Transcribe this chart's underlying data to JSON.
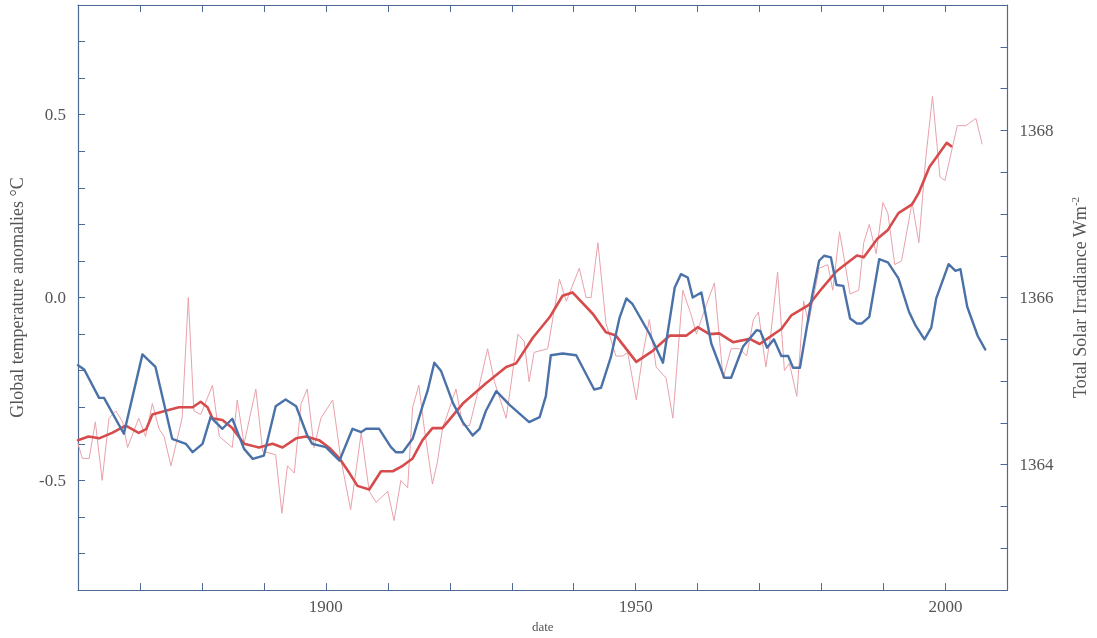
{
  "chart_data": {
    "type": "line",
    "xlabel": "date",
    "ylabel": "Global temperature anomalies °C",
    "y2label": "Total Solar Irradiance Wm$^{-2}$",
    "xlim": [
      1860,
      2010
    ],
    "xticks": [
      {
        "value": 1870,
        "label": null
      },
      {
        "value": 1880,
        "label": null
      },
      {
        "value": 1890,
        "label": null
      },
      1900,
      {
        "value": 1910,
        "label": null
      },
      {
        "value": 1920,
        "label": null
      },
      {
        "value": 1930,
        "label": null
      },
      {
        "value": 1940,
        "label": null
      },
      1950,
      {
        "value": 1960,
        "label": null
      },
      {
        "value": 1970,
        "label": null
      },
      {
        "value": 1980,
        "label": null
      },
      {
        "value": 1990,
        "label": null
      },
      2000
    ],
    "ylim": [
      -0.8,
      0.8
    ],
    "yticks": [
      {
        "value": -0.7,
        "label": null
      },
      {
        "value": -0.6,
        "label": null
      },
      -0.5,
      {
        "value": -0.4,
        "label": null
      },
      {
        "value": -0.3,
        "label": null
      },
      {
        "value": -0.2,
        "label": null
      },
      {
        "value": -0.1,
        "label": null
      },
      {
        "value": 0,
        "label": "0.0"
      },
      {
        "value": 0.1,
        "label": null
      },
      {
        "value": 0.2,
        "label": null
      },
      {
        "value": 0.3,
        "label": null
      },
      {
        "value": 0.4,
        "label": null
      },
      0.5,
      {
        "value": 0.6,
        "label": null
      },
      {
        "value": 0.7,
        "label": null
      }
    ],
    "y2lim": [
      1362.5,
      1369.5
    ],
    "y2ticks": [
      {
        "value": 1363,
        "label": null
      },
      {
        "value": 1363.5,
        "label": null
      },
      1364,
      {
        "value": 1364.5,
        "label": null
      },
      {
        "value": 1365,
        "label": null
      },
      {
        "value": 1365.5,
        "label": null
      },
      1366,
      {
        "value": 1366.5,
        "label": null
      },
      {
        "value": 1367,
        "label": null
      },
      {
        "value": 1367.5,
        "label": null
      },
      1368,
      {
        "value": 1368.5,
        "label": null
      },
      {
        "value": 1369,
        "label": null
      }
    ],
    "marker": "none",
    "line_style": "solid",
    "grid": false,
    "series": [
      {
        "color": "#e9a1ab",
        "x": [
          1860,
          1860.7,
          1861.8,
          1862.8,
          1863.9,
          1865,
          1866.1,
          1867.2,
          1868,
          1869.8,
          1870.9,
          1872,
          1873.1,
          1873.9,
          1875,
          1876.8,
          1877.8,
          1878.7,
          1879.8,
          1881.7,
          1882.8,
          1884.9,
          1885.7,
          1886.8,
          1888.7,
          1889.8,
          1891.9,
          1892.9,
          1893.8,
          1894.9,
          1896,
          1897,
          1898.1,
          1899.2,
          1901.1,
          1902.4,
          1904,
          1905.7,
          1907,
          1908.1,
          1910,
          1911,
          1912.1,
          1913.2,
          1914,
          1915,
          1915.9,
          1917.2,
          1918,
          1918.8,
          1921,
          1922.1,
          1923.2,
          1924.5,
          1926.1,
          1927.2,
          1929.1,
          1931,
          1932,
          1932.8,
          1933.6,
          1935.8,
          1937.7,
          1938.8,
          1940.9,
          1942,
          1942.8,
          1943.9,
          1945.2,
          1946.8,
          1947.9,
          1948.7,
          1950.1,
          1951.1,
          1952.2,
          1953.3,
          1954.9,
          1956,
          1957.6,
          1959,
          1959.8,
          1961.4,
          1962.7,
          1964.1,
          1965.4,
          1966.8,
          1967.9,
          1969,
          1969.8,
          1971,
          1971.8,
          1972.9,
          1974,
          1974.8,
          1976,
          1977.1,
          1977.9,
          1979.6,
          1981,
          1981.8,
          1982.9,
          1984.6,
          1986,
          1986.8,
          1987.7,
          1988.8,
          1989.9,
          1990.7,
          1991.8,
          1992.9,
          1994.6,
          1995.7,
          1996.8,
          1997.9,
          1999.1,
          1999.9,
          2001.9,
          2003.3,
          2004.9,
          2005.9
        ],
        "values": [
          -0.4,
          -0.44,
          -0.44,
          -0.34,
          -0.5,
          -0.33,
          -0.31,
          -0.34,
          -0.41,
          -0.33,
          -0.38,
          -0.29,
          -0.36,
          -0.38,
          -0.46,
          -0.33,
          0.0,
          -0.31,
          -0.32,
          -0.24,
          -0.38,
          -0.41,
          -0.28,
          -0.4,
          -0.25,
          -0.42,
          -0.43,
          -0.59,
          -0.46,
          -0.48,
          -0.29,
          -0.25,
          -0.41,
          -0.33,
          -0.28,
          -0.44,
          -0.58,
          -0.37,
          -0.53,
          -0.56,
          -0.53,
          -0.61,
          -0.5,
          -0.52,
          -0.3,
          -0.24,
          -0.36,
          -0.51,
          -0.45,
          -0.36,
          -0.25,
          -0.35,
          -0.35,
          -0.26,
          -0.14,
          -0.23,
          -0.33,
          -0.1,
          -0.12,
          -0.23,
          -0.15,
          -0.14,
          0.05,
          -0.01,
          0.08,
          0.0,
          0.0,
          0.15,
          -0.07,
          -0.16,
          -0.16,
          -0.15,
          -0.28,
          -0.16,
          -0.06,
          -0.19,
          -0.22,
          -0.33,
          0.02,
          -0.05,
          -0.1,
          -0.02,
          0.04,
          -0.22,
          -0.14,
          -0.14,
          -0.16,
          -0.06,
          -0.04,
          -0.19,
          -0.1,
          0.07,
          -0.2,
          -0.18,
          -0.27,
          -0.01,
          -0.07,
          0.08,
          0.09,
          0.02,
          0.18,
          0.01,
          0.02,
          0.15,
          0.2,
          0.12,
          0.26,
          0.23,
          0.09,
          0.1,
          0.26,
          0.15,
          0.38,
          0.55,
          0.33,
          0.32,
          0.47,
          0.47,
          0.49,
          0.42
        ]
      },
      {
        "color": "#d64b4b",
        "x": [
          1860,
          1861.7,
          1863.4,
          1865.5,
          1867.7,
          1869.8,
          1871,
          1872,
          1874,
          1876.3,
          1878.5,
          1879.8,
          1880.9,
          1881.7,
          1883.3,
          1884.9,
          1886.8,
          1889.2,
          1891.4,
          1893,
          1895.2,
          1896.8,
          1898.9,
          1900.5,
          1902.2,
          1903.8,
          1905.1,
          1907,
          1908.9,
          1910.8,
          1912.4,
          1914,
          1915.6,
          1917.2,
          1918.8,
          1922.1,
          1925.8,
          1929.1,
          1930.7,
          1933.4,
          1936.1,
          1938.2,
          1939.8,
          1943.1,
          1945.2,
          1946.8,
          1950.1,
          1952.8,
          1955.5,
          1958.2,
          1960,
          1961.9,
          1963.5,
          1965.7,
          1968.4,
          1970,
          1973.5,
          1975.1,
          1977.9,
          1980.1,
          1982.4,
          1985.7,
          1986.8,
          1989,
          1990.7,
          1992.4,
          1994.6,
          1995.7,
          1997.4,
          2000.2,
          2000.9
        ],
        "values": [
          -0.39,
          -0.38,
          -0.385,
          -0.37,
          -0.35,
          -0.37,
          -0.36,
          -0.32,
          -0.31,
          -0.3,
          -0.3,
          -0.285,
          -0.3,
          -0.33,
          -0.335,
          -0.357,
          -0.4,
          -0.41,
          -0.4,
          -0.41,
          -0.385,
          -0.38,
          -0.39,
          -0.41,
          -0.44,
          -0.48,
          -0.515,
          -0.525,
          -0.475,
          -0.475,
          -0.46,
          -0.44,
          -0.39,
          -0.357,
          -0.357,
          -0.29,
          -0.235,
          -0.19,
          -0.18,
          -0.11,
          -0.054,
          0.005,
          0.014,
          -0.045,
          -0.095,
          -0.104,
          -0.176,
          -0.145,
          -0.104,
          -0.104,
          -0.081,
          -0.1,
          -0.098,
          -0.122,
          -0.113,
          -0.127,
          -0.086,
          -0.049,
          -0.021,
          0.026,
          0.072,
          0.115,
          0.11,
          0.161,
          0.185,
          0.231,
          0.255,
          0.287,
          0.357,
          0.423,
          0.414
        ]
      },
      {
        "color": "#4a72a8",
        "axis": "y2",
        "x": [
          1860,
          1861,
          1863.4,
          1864.2,
          1867.4,
          1870.4,
          1872.5,
          1875.2,
          1877.4,
          1878.5,
          1880.1,
          1881.4,
          1883.3,
          1884.9,
          1886.8,
          1888.2,
          1890,
          1891.9,
          1893.5,
          1895.2,
          1897,
          1897.8,
          1900,
          1902.2,
          1904.3,
          1905.7,
          1906.5,
          1908.6,
          1910.5,
          1911.3,
          1912.4,
          1914,
          1915.6,
          1916.4,
          1917.5,
          1918.6,
          1920.5,
          1922.1,
          1923.7,
          1924.8,
          1925.8,
          1927.5,
          1929.6,
          1932.8,
          1934.5,
          1935.5,
          1936.3,
          1938.2,
          1940.4,
          1943.3,
          1944.4,
          1946,
          1947.4,
          1948.5,
          1949.5,
          1952.2,
          1954.4,
          1956.3,
          1957.3,
          1958.4,
          1959.2,
          1960.6,
          1962.2,
          1964.3,
          1965.4,
          1967.3,
          1969.5,
          1970.1,
          1971.2,
          1972.3,
          1973.5,
          1974.6,
          1975.4,
          1976.5,
          1978.5,
          1979.6,
          1980.4,
          1981.5,
          1982.4,
          1983.5,
          1984.6,
          1985.7,
          1986.5,
          1987.7,
          1989.3,
          1990.7,
          1992.4,
          1994.1,
          1995.2,
          1996.6,
          1997.7,
          1998.5,
          2000.5,
          2001.6,
          2002.4,
          2003.5,
          2005.2,
          2006.4
        ],
        "values": [
          1365.19,
          1365.14,
          1364.8,
          1364.8,
          1364.37,
          1365.32,
          1365.17,
          1364.31,
          1364.25,
          1364.15,
          1364.25,
          1364.57,
          1364.43,
          1364.55,
          1364.19,
          1364.07,
          1364.11,
          1364.7,
          1364.78,
          1364.7,
          1364.35,
          1364.25,
          1364.21,
          1364.05,
          1364.43,
          1364.39,
          1364.43,
          1364.43,
          1364.21,
          1364.15,
          1364.15,
          1364.31,
          1364.7,
          1364.88,
          1365.22,
          1365.12,
          1364.74,
          1364.51,
          1364.35,
          1364.43,
          1364.64,
          1364.88,
          1364.72,
          1364.51,
          1364.57,
          1364.82,
          1365.31,
          1365.33,
          1365.31,
          1364.9,
          1364.92,
          1365.29,
          1365.76,
          1365.99,
          1365.92,
          1365.57,
          1365.22,
          1366.12,
          1366.28,
          1366.24,
          1366.0,
          1366.06,
          1365.45,
          1365.04,
          1365.04,
          1365.41,
          1365.61,
          1365.6,
          1365.4,
          1365.5,
          1365.3,
          1365.3,
          1365.16,
          1365.16,
          1366.03,
          1366.44,
          1366.5,
          1366.48,
          1366.15,
          1366.14,
          1365.75,
          1365.69,
          1365.69,
          1365.77,
          1366.46,
          1366.42,
          1366.23,
          1365.83,
          1365.66,
          1365.5,
          1365.64,
          1365.99,
          1366.4,
          1366.32,
          1366.34,
          1365.89,
          1365.54,
          1365.38
        ]
      }
    ]
  }
}
